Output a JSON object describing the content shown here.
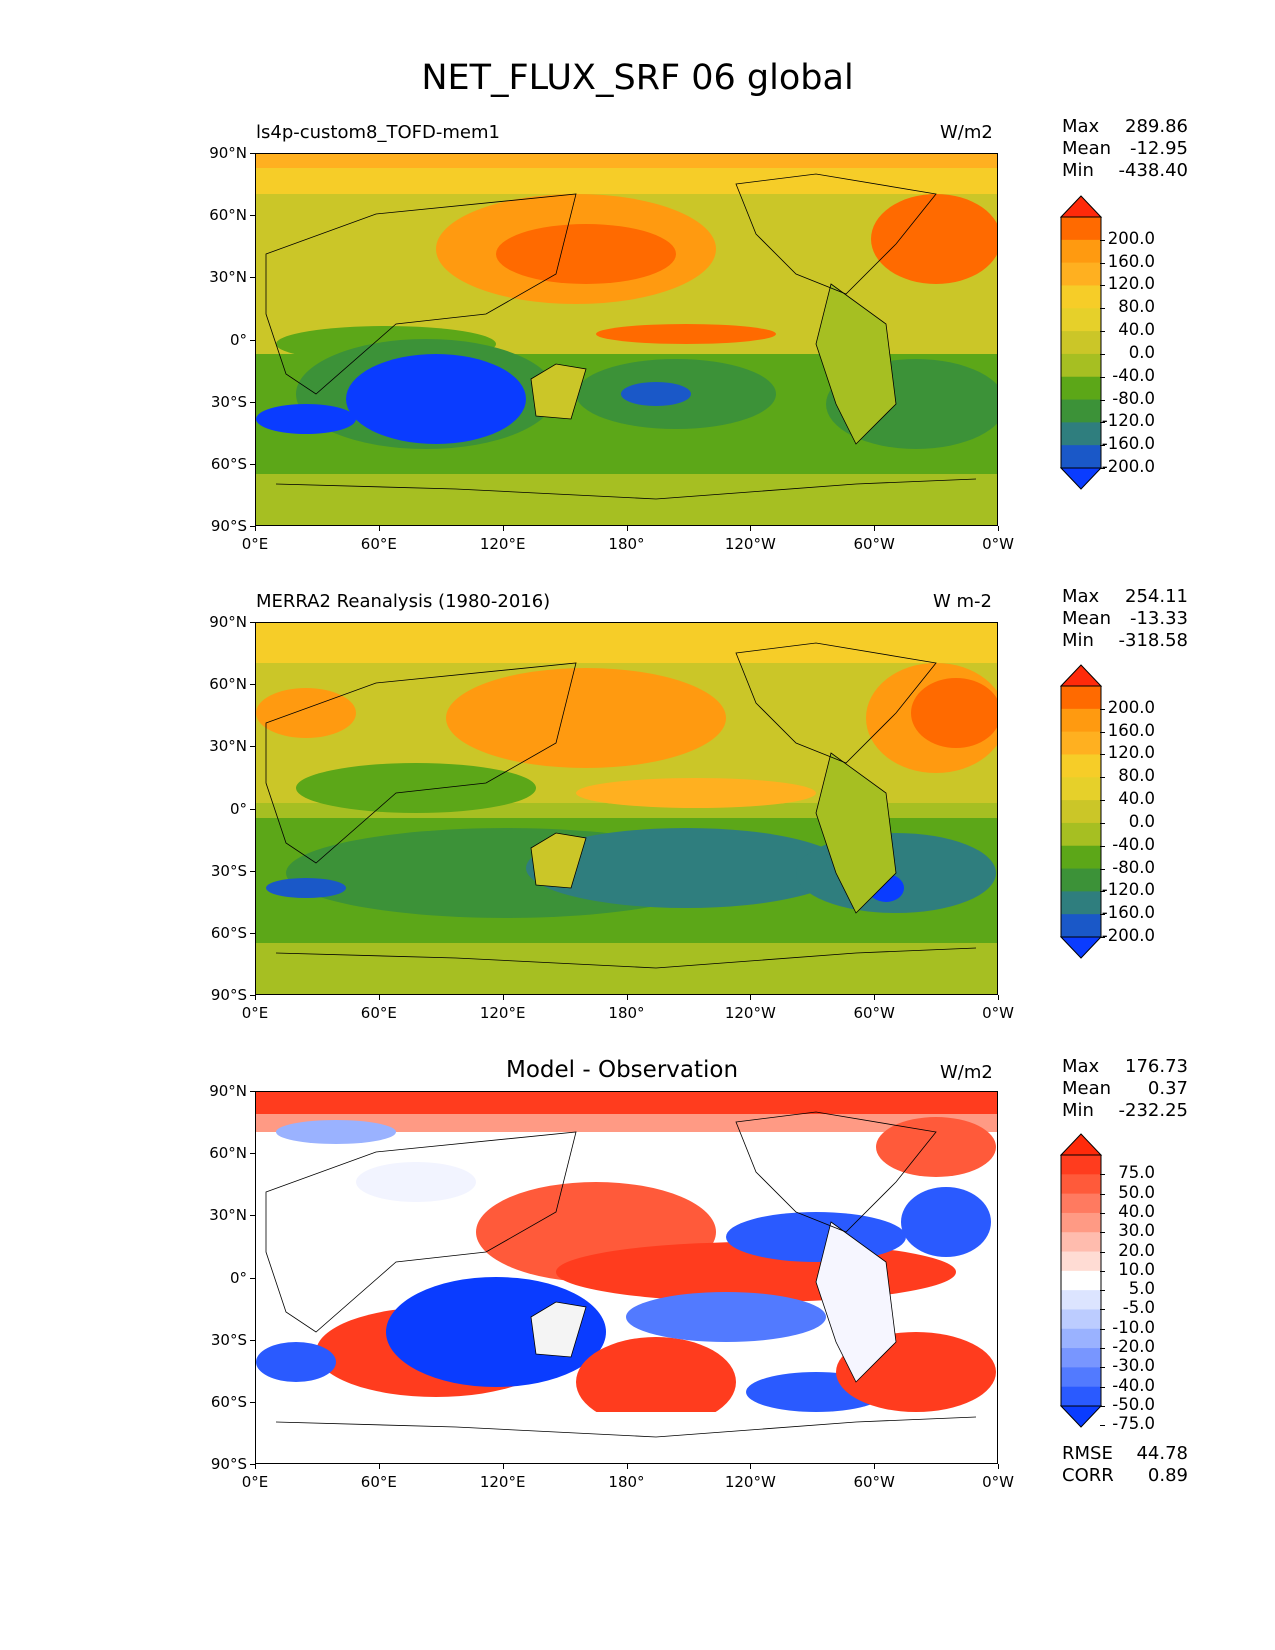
{
  "figure_title": "NET_FLUX_SRF 06 global",
  "lat_labels": [
    "90°N",
    "60°N",
    "30°N",
    "0°",
    "30°S",
    "60°S",
    "90°S"
  ],
  "lon_labels": [
    "0°E",
    "60°E",
    "120°E",
    "180°",
    "120°W",
    "60°W",
    "0°W"
  ],
  "panels": [
    {
      "name": "model",
      "left_title": "ls4p-custom8_TOFD-mem1",
      "center_title": "",
      "units": "W/m2",
      "stats": {
        "max_label": "Max",
        "max": "289.86",
        "mean_label": "Mean",
        "mean": "-12.95",
        "min_label": "Min",
        "min": "-438.40"
      },
      "colorbar": {
        "labels": [
          "200.0",
          "160.0",
          "120.0",
          "80.0",
          "40.0",
          "0.0",
          "-40.0",
          "-80.0",
          "-120.0",
          "-160.0",
          "-200.0"
        ],
        "colors": [
          "#ff2a0a",
          "#ff6a00",
          "#ff9a10",
          "#ffb020",
          "#f6cd28",
          "#e6d02a",
          "#cbc628",
          "#a6bf22",
          "#5ca718",
          "#3c9238",
          "#2f7e7e",
          "#1a58c8",
          "#0a3cff"
        ]
      }
    },
    {
      "name": "obs",
      "left_title": "MERRA2 Reanalysis (1980-2016)",
      "center_title": "",
      "units": "W m-2",
      "stats": {
        "max_label": "Max",
        "max": "254.11",
        "mean_label": "Mean",
        "mean": "-13.33",
        "min_label": "Min",
        "min": "-318.58"
      },
      "colorbar": {
        "labels": [
          "200.0",
          "160.0",
          "120.0",
          "80.0",
          "40.0",
          "0.0",
          "-40.0",
          "-80.0",
          "-120.0",
          "-160.0",
          "-200.0"
        ],
        "colors": [
          "#ff2a0a",
          "#ff6a00",
          "#ff9a10",
          "#ffb020",
          "#f6cd28",
          "#e6d02a",
          "#cbc628",
          "#a6bf22",
          "#5ca718",
          "#3c9238",
          "#2f7e7e",
          "#1a58c8",
          "#0a3cff"
        ]
      }
    },
    {
      "name": "diff",
      "left_title": "",
      "center_title": "Model - Observation",
      "units": "W/m2",
      "stats": {
        "max_label": "Max",
        "max": "176.73",
        "mean_label": "Mean",
        "mean": "0.37",
        "min_label": "Min",
        "min": "-232.25"
      },
      "colorbar": {
        "labels": [
          "75.0",
          "50.0",
          "40.0",
          "30.0",
          "20.0",
          "10.0",
          "5.0",
          "-5.0",
          "-10.0",
          "-20.0",
          "-30.0",
          "-40.0",
          "-50.0",
          "-75.0"
        ],
        "colors": [
          "#ff2a0a",
          "#ff3c1e",
          "#ff5a3a",
          "#ff7a60",
          "#ff9a84",
          "#ffbcae",
          "#ffdcd4",
          "#ffffff",
          "#dce4ff",
          "#bcccff",
          "#9ab2ff",
          "#7896ff",
          "#527aff",
          "#2a5aff",
          "#0a3cff"
        ]
      },
      "rmse_label": "RMSE",
      "rmse": "44.78",
      "corr_label": "CORR",
      "corr": "0.89"
    }
  ]
}
